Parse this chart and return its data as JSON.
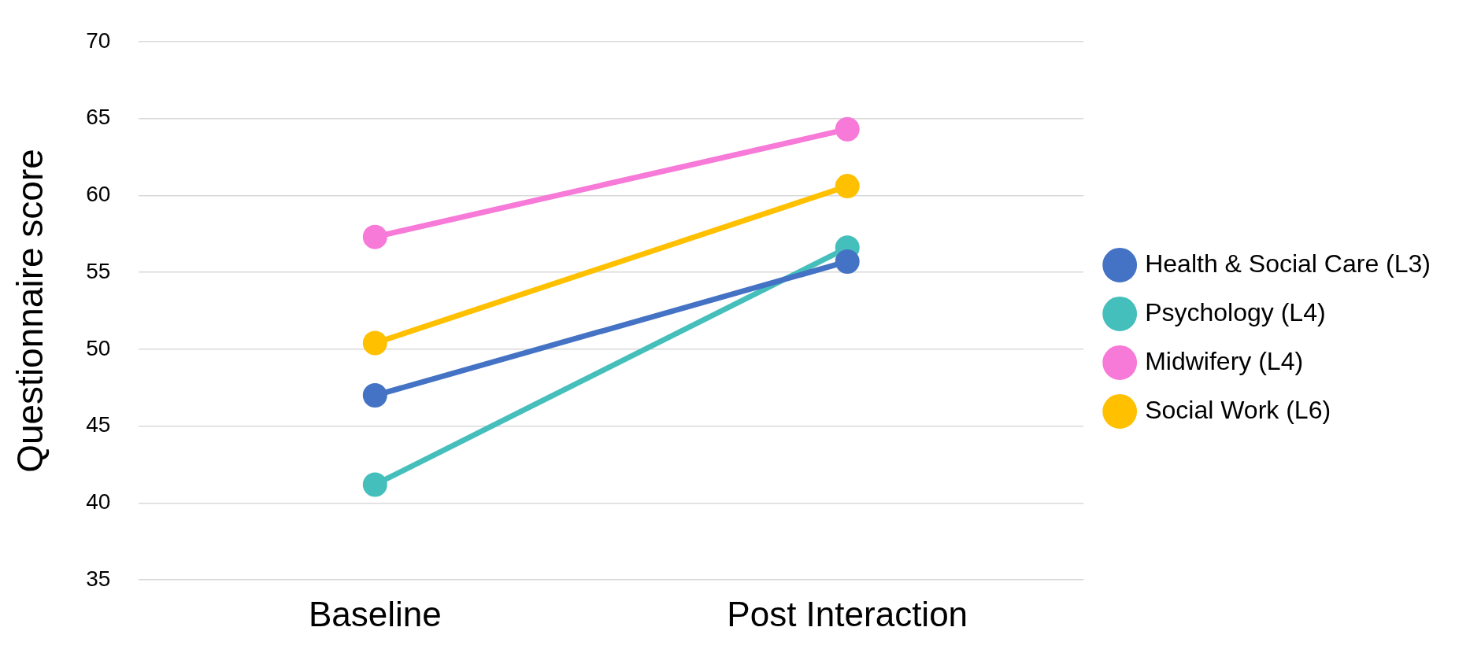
{
  "chart_data": {
    "type": "line",
    "ylabel": "Questionnaire score",
    "categories": [
      "Baseline",
      "Post Interaction"
    ],
    "series": [
      {
        "name": "Health & Social Care (L3)",
        "color": "#4472c4",
        "values": [
          47.0,
          55.7
        ]
      },
      {
        "name": "Psychology (L4)",
        "color": "#45bfbb",
        "values": [
          41.2,
          56.6
        ]
      },
      {
        "name": "Midwifery (L4)",
        "color": "#f779d8",
        "values": [
          57.3,
          64.3
        ]
      },
      {
        "name": "Social Work (L6)",
        "color": "#ffc000",
        "values": [
          50.4,
          60.6
        ]
      }
    ],
    "ylim": [
      35,
      70
    ],
    "yticks": [
      35,
      40,
      45,
      50,
      55,
      60,
      65,
      70
    ],
    "grid": "y",
    "legend": "right",
    "marker": "circle",
    "line_style": "solid"
  }
}
